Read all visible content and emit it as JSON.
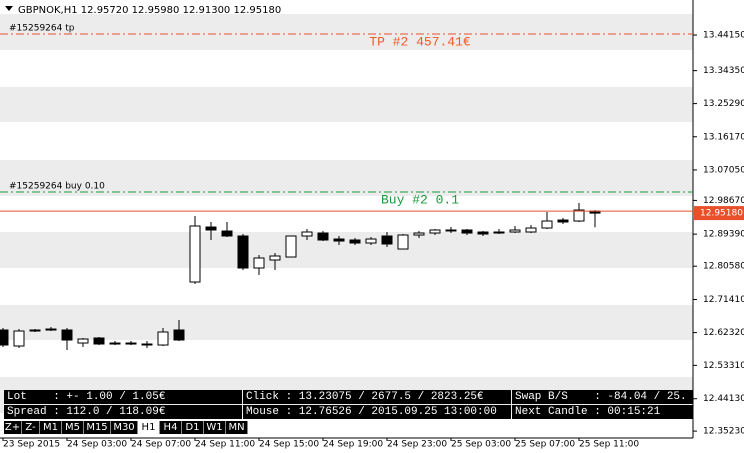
{
  "header": "GBPNOK,H1  12.95720 12.95980 12.91300 12.95180",
  "orders": {
    "tp_label": "#15259264 tp",
    "tp_text": "TP #2 457.41€",
    "buy_label": "#15259264 buy 0.10",
    "buy_text": "Buy #2 0.1"
  },
  "panel": {
    "row1": [
      "Lot    : +- 1.00 / 1.05€",
      "Click : 13.23075 / 2677.5 / 2823.25€",
      "Swap B/S    : -84.04 / 25."
    ],
    "row2": [
      "Spread : 112.0 / 118.09€",
      "Mouse : 12.76526 / 2015.09.25 13:00:00",
      "Next Candle : 00:15:21"
    ],
    "buttons": [
      "Z+",
      "Z-",
      "M1",
      "M5",
      "M15",
      "M30",
      "H1",
      "H4",
      "D1",
      "W1",
      "MN"
    ]
  },
  "chart_data": {
    "type": "candlestick",
    "categories": [
      "23 Sep 2015",
      null,
      null,
      null,
      "24 Sep 03:00",
      null,
      null,
      null,
      "24 Sep 07:00",
      null,
      null,
      null,
      "24 Sep 11:00",
      null,
      null,
      null,
      "24 Sep 15:00",
      null,
      null,
      null,
      "24 Sep 19:00",
      null,
      null,
      null,
      "24 Sep 23:00",
      null,
      null,
      null,
      "25 Sep 03:00",
      null,
      null,
      null,
      "25 Sep 07:00",
      null,
      null,
      null,
      "25 Sep 11:00",
      null
    ],
    "open": [
      12.6303,
      12.5863,
      12.6275,
      12.6303,
      12.6303,
      12.5945,
      12.6083,
      12.5945,
      12.5945,
      12.5918,
      12.589,
      12.6303,
      12.7623,
      12.9135,
      12.9025,
      12.8888,
      12.8008,
      12.8228,
      12.831,
      12.8888,
      12.897,
      12.8805,
      12.8778,
      12.8695,
      12.8888,
      12.853,
      12.8915,
      12.897,
      12.9053,
      12.9053,
      12.8998,
      12.8998,
      12.8998,
      12.8998,
      12.9108,
      12.9328,
      12.93,
      12.9572
    ],
    "high": [
      12.6358,
      12.633,
      12.633,
      12.6385,
      12.6358,
      12.6083,
      12.611,
      12.6,
      12.6,
      12.6,
      12.6358,
      12.6578,
      12.9438,
      12.9273,
      12.9273,
      12.8943,
      12.8365,
      12.842,
      12.886,
      12.908,
      12.9025,
      12.8888,
      12.8833,
      12.886,
      12.8998,
      12.8943,
      12.9025,
      12.908,
      12.9135,
      12.908,
      12.9025,
      12.908,
      12.9163,
      12.919,
      12.9548,
      12.9383,
      12.9795,
      12.9598
    ],
    "low": [
      12.5835,
      12.5808,
      12.6248,
      12.6275,
      12.5753,
      12.5835,
      12.589,
      12.589,
      12.589,
      12.5808,
      12.5863,
      12.6,
      12.7568,
      12.8778,
      12.886,
      12.7953,
      12.7815,
      12.7953,
      12.831,
      12.8778,
      12.875,
      12.864,
      12.864,
      12.864,
      12.8585,
      12.853,
      12.8833,
      12.8915,
      12.897,
      12.8915,
      12.8888,
      12.8943,
      12.897,
      12.897,
      12.908,
      12.9218,
      12.9273,
      12.913
    ],
    "close": [
      12.589,
      12.6275,
      12.6303,
      12.633,
      12.6028,
      12.6055,
      12.5918,
      12.5945,
      12.5945,
      12.5918,
      12.6248,
      12.6028,
      12.9163,
      12.9053,
      12.8888,
      12.8008,
      12.8283,
      12.8338,
      12.8888,
      12.8998,
      12.8778,
      12.875,
      12.8695,
      12.8805,
      12.8668,
      12.8915,
      12.897,
      12.9053,
      12.9053,
      12.897,
      12.8943,
      12.897,
      12.9053,
      12.9108,
      12.93,
      12.9273,
      12.9603,
      12.9518
    ],
    "up_color": "#ffffff",
    "down_color": "#000000",
    "ylim": [
      12.3333,
      13.5378
    ],
    "yticks": [
      {
        "value": 13.4415,
        "label": "13.44150"
      },
      {
        "value": 13.3435,
        "label": "13.34350"
      },
      13.2529,
      13.1617,
      13.0705,
      12.9867,
      12.8939,
      12.8058,
      12.7141,
      12.6232,
      12.5331,
      12.4413,
      12.3523
    ],
    "ytick_labels": [
      "13.44150",
      "13.34350",
      "13.25290",
      "13.16170",
      "13.07050",
      "12.98670",
      "12.89390",
      "12.80580",
      "12.71410",
      "12.62320",
      "12.53310",
      "12.44130",
      "12.35230"
    ],
    "price_tag": {
      "value": 12.9518,
      "label": "12.95180"
    }
  }
}
